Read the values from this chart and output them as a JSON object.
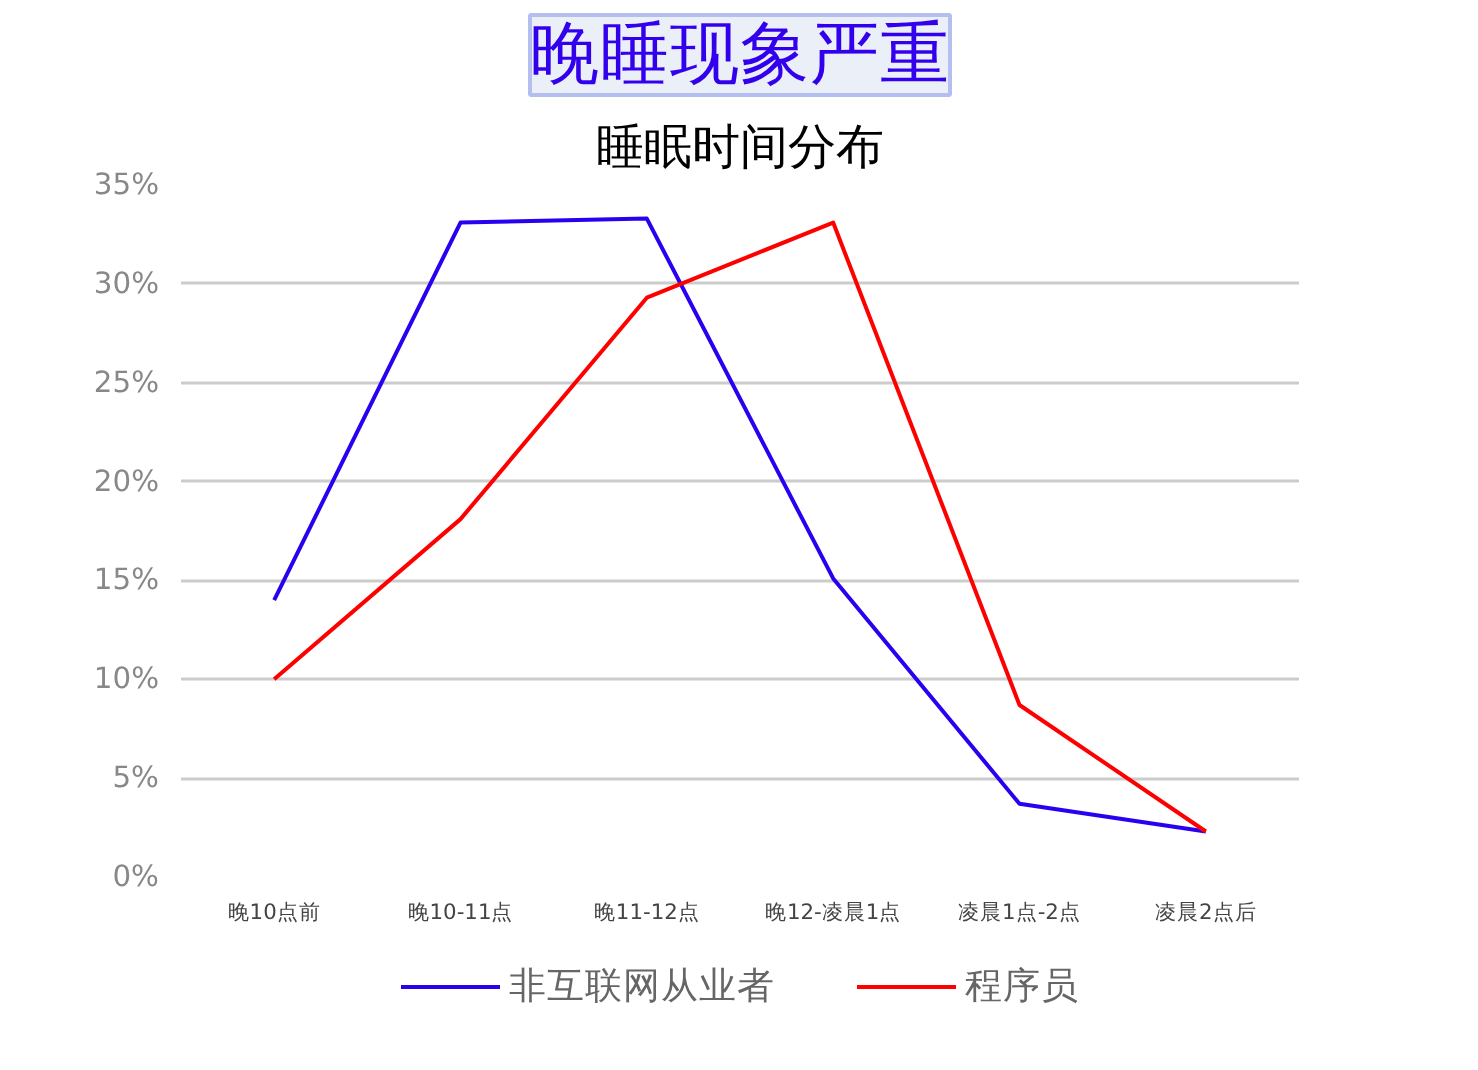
{
  "chart_data": {
    "type": "line",
    "title": "晚睡现象严重",
    "subtitle": "睡眠时间分布",
    "categories": [
      "晚10点前",
      "晚10-11点",
      "晚11-12点",
      "晚12-凌晨1点",
      "凌晨1点-2点",
      "凌晨2点后"
    ],
    "series": [
      {
        "name": "非互联网从业者",
        "color": "#2a00f0",
        "values": [
          14,
          33.1,
          33.3,
          15.1,
          3.7,
          2.3
        ]
      },
      {
        "name": "程序员",
        "color": "#ff0000",
        "values": [
          10,
          18.1,
          29.3,
          33.1,
          8.7,
          2.3
        ]
      }
    ],
    "ylim": [
      0,
      35
    ],
    "yticks": [
      {
        "value": 0,
        "label": "0%"
      },
      {
        "value": 5,
        "label": "5%"
      },
      {
        "value": 10,
        "label": "10%"
      },
      {
        "value": 15,
        "label": "15%"
      },
      {
        "value": 20,
        "label": "20%"
      },
      {
        "value": 25,
        "label": "25%"
      },
      {
        "value": 30,
        "label": "30%"
      },
      {
        "value": 35,
        "label": "35%"
      }
    ],
    "grid": "y",
    "legend": "bottom",
    "marker": "none"
  }
}
